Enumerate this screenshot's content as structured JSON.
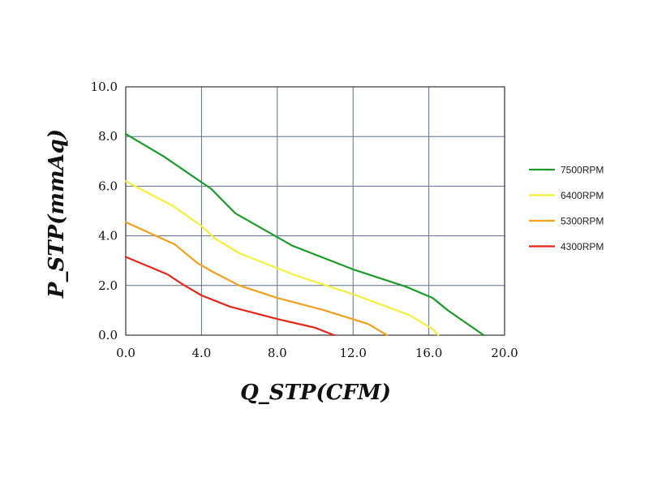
{
  "chart_data": {
    "type": "line",
    "title": "",
    "xlabel": "Q_STP(CFM)",
    "ylabel": "P_STP(mmAq)",
    "xlim": [
      0,
      20
    ],
    "ylim": [
      0,
      10
    ],
    "x_ticks": [
      "0.0",
      "4.0",
      "8.0",
      "12.0",
      "16.0",
      "20.0"
    ],
    "y_ticks": [
      "0.0",
      "2.0",
      "4.0",
      "6.0",
      "8.0",
      "10.0"
    ],
    "grid": true,
    "legend_position": "right",
    "series": [
      {
        "name": "7500RPM",
        "color": "#1a9a2a",
        "points": [
          [
            0,
            8.1
          ],
          [
            2,
            7.2
          ],
          [
            4.5,
            5.9
          ],
          [
            5.8,
            4.9
          ],
          [
            8.8,
            3.6
          ],
          [
            12,
            2.65
          ],
          [
            14.8,
            1.95
          ],
          [
            16.2,
            1.5
          ],
          [
            17,
            1.0
          ],
          [
            18.9,
            0.0
          ]
        ]
      },
      {
        "name": "6400RPM",
        "color": "#f2f03a",
        "points": [
          [
            0,
            6.2
          ],
          [
            2.5,
            5.2
          ],
          [
            4,
            4.4
          ],
          [
            4.7,
            3.9
          ],
          [
            6,
            3.3
          ],
          [
            9,
            2.4
          ],
          [
            12,
            1.65
          ],
          [
            15,
            0.8
          ],
          [
            16.2,
            0.25
          ],
          [
            16.5,
            0.0
          ]
        ]
      },
      {
        "name": "5300RPM",
        "color": "#f2a01a",
        "points": [
          [
            0,
            4.55
          ],
          [
            2.6,
            3.65
          ],
          [
            3.8,
            2.9
          ],
          [
            4.6,
            2.55
          ],
          [
            6,
            2.0
          ],
          [
            8,
            1.5
          ],
          [
            10.5,
            1.0
          ],
          [
            12.8,
            0.45
          ],
          [
            13.8,
            0.0
          ]
        ]
      },
      {
        "name": "4300RPM",
        "color": "#e3261a",
        "points": [
          [
            0,
            3.15
          ],
          [
            2.2,
            2.45
          ],
          [
            3,
            2.05
          ],
          [
            4,
            1.6
          ],
          [
            5.5,
            1.15
          ],
          [
            8,
            0.65
          ],
          [
            10,
            0.3
          ],
          [
            11,
            0.0
          ]
        ]
      }
    ]
  }
}
